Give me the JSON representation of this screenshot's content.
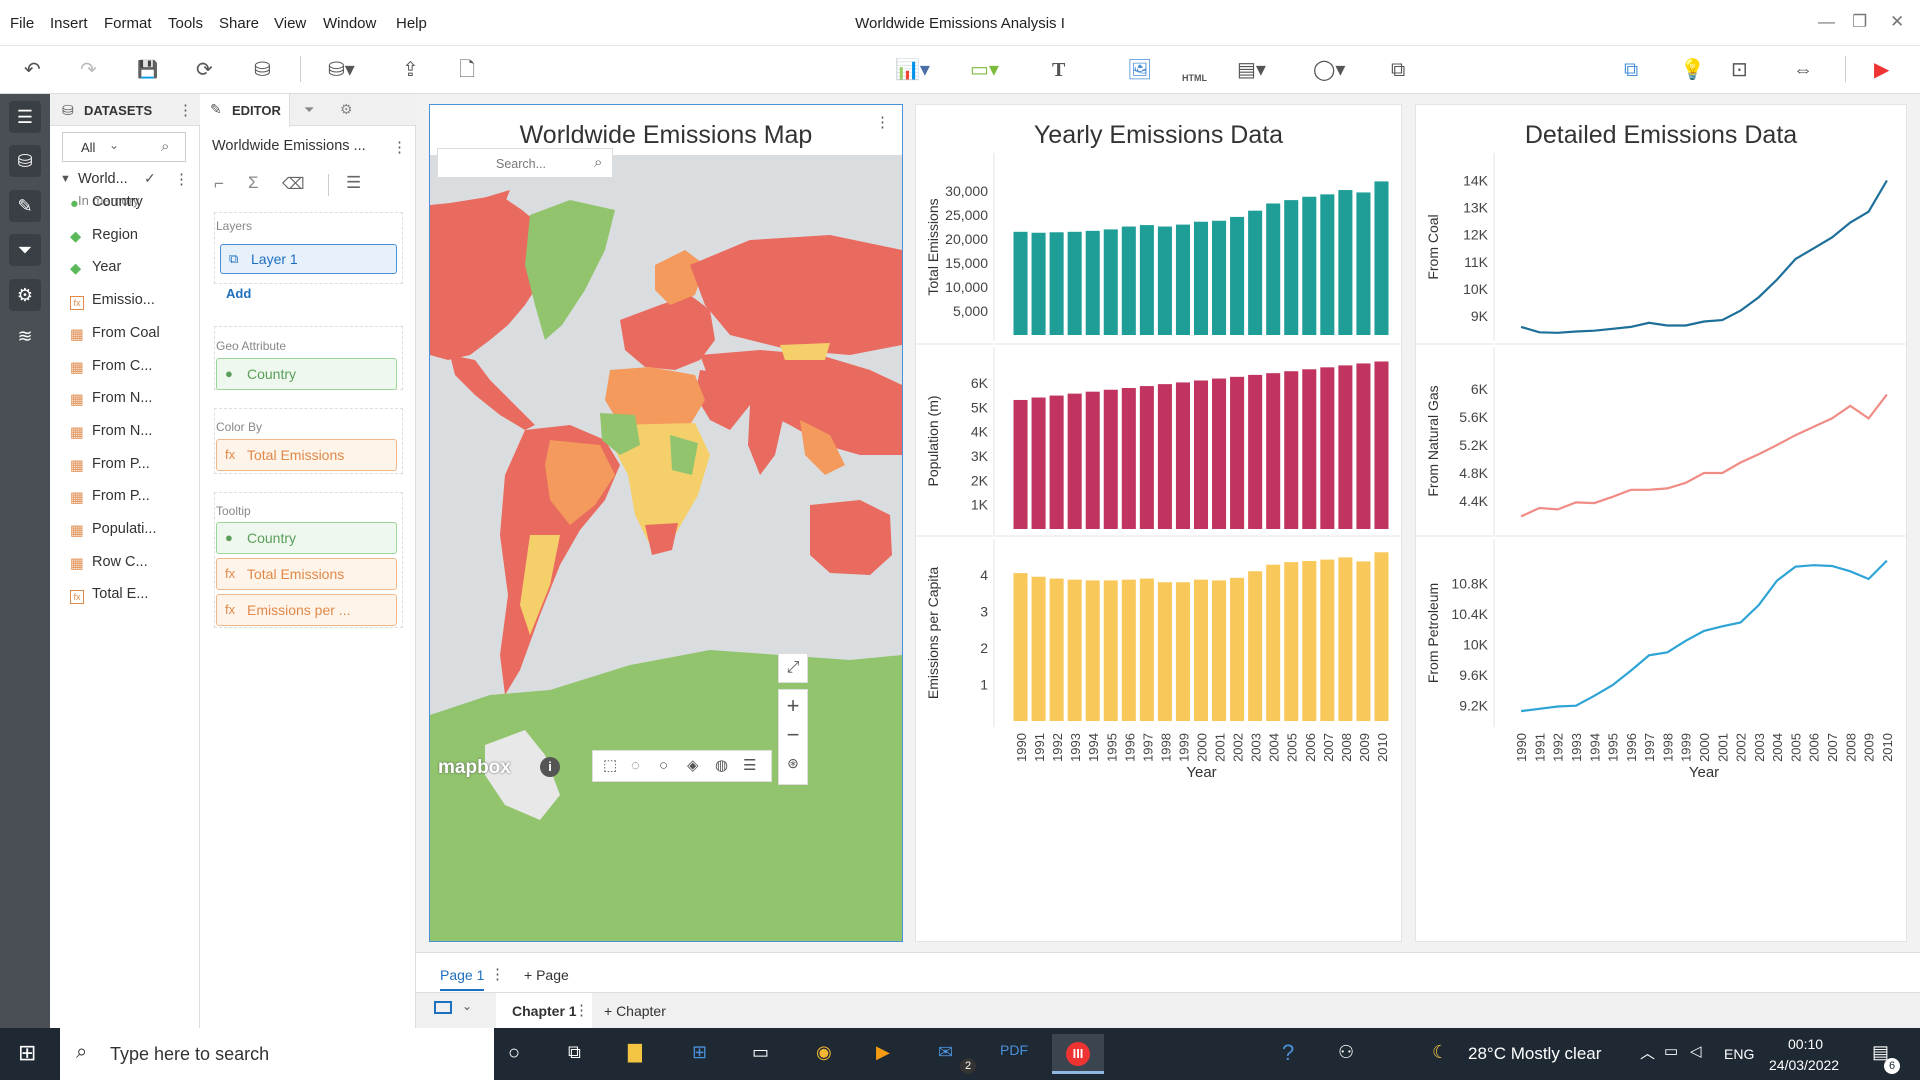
{
  "menu": {
    "items": [
      "File",
      "Insert",
      "Format",
      "Tools",
      "Share",
      "View",
      "Window",
      "Help"
    ],
    "window_title": "Worldwide Emissions Analysis I",
    "controls": [
      "—",
      "❐",
      "✕"
    ]
  },
  "toolbar": {
    "undo": "↶",
    "redo": "↷",
    "save": "💾",
    "refresh": "⟳",
    "datasource": "⛁",
    "adddata": "⛁▾",
    "export": "⇪",
    "newdoc": "🗋",
    "chartbtn": "📊▾",
    "colorbtn": "▭▾",
    "textbtn": "T",
    "imagebtn": "🖼",
    "htmlbtn": "HTML",
    "filterbtn": "▤▾",
    "shapesbtn": "◯▾",
    "newpanel": "⧉",
    "right": [
      "⧉",
      "💡",
      "⊡",
      "⇔",
      "▶"
    ]
  },
  "rail": [
    "☰",
    "⛁",
    "✎",
    "⏷",
    "⚙",
    "≋"
  ],
  "datasets": {
    "title": "DATASETS",
    "filter_value": "All",
    "dataset_name": "World...",
    "in_memory": "In memory",
    "fields": [
      {
        "label": "Country",
        "kind": "geo"
      },
      {
        "label": "Region",
        "kind": "attr"
      },
      {
        "label": "Year",
        "kind": "attr"
      },
      {
        "label": "Emissio...",
        "kind": "fx"
      },
      {
        "label": "From Coal",
        "kind": "metric"
      },
      {
        "label": "From C...",
        "kind": "metric"
      },
      {
        "label": "From N...",
        "kind": "metric"
      },
      {
        "label": "From N...",
        "kind": "metric"
      },
      {
        "label": "From P...",
        "kind": "metric"
      },
      {
        "label": "From P...",
        "kind": "metric"
      },
      {
        "label": "Populati...",
        "kind": "metric"
      },
      {
        "label": "Row C...",
        "kind": "metric"
      },
      {
        "label": "Total E...",
        "kind": "fx"
      }
    ]
  },
  "editor": {
    "title": "EDITOR",
    "viz_name": "Worldwide Emissions ...",
    "layers_label": "Layers",
    "layer1": "Layer 1",
    "add": "Add",
    "geo_label": "Geo Attribute",
    "geo_value": "Country",
    "color_label": "Color By",
    "color_value": "Total Emissions",
    "tooltip_label": "Tooltip",
    "tooltip_values": [
      "Country",
      "Total Emissions",
      "Emissions per ..."
    ]
  },
  "map": {
    "title": "Worldwide Emissions Map",
    "search_placeholder": "Search...",
    "brand": "mapbox",
    "colors": {
      "high": "#e96a5e",
      "mid": "#f39a5c",
      "low": "#f5d06a",
      "green": "#91c46d",
      "water": "#dadde0"
    }
  },
  "chart_data": [
    {
      "type": "bar",
      "title": "Yearly Emissions Data",
      "xlabel": "Year",
      "categories": [
        "1990",
        "1991",
        "1992",
        "1993",
        "1994",
        "1995",
        "1996",
        "1997",
        "1998",
        "1999",
        "2000",
        "2001",
        "2002",
        "2003",
        "2004",
        "2005",
        "2006",
        "2007",
        "2008",
        "2009",
        "2010"
      ],
      "panels": [
        {
          "ylabel": "Total Emissions",
          "color": "#1e9e96",
          "ylim": [
            0,
            35000
          ],
          "ticks": [
            "5,000",
            "10,000",
            "15,000",
            "20,000",
            "25,000",
            "30,000"
          ],
          "tickvals": [
            5000,
            10000,
            15000,
            20000,
            25000,
            30000
          ],
          "values": [
            21500,
            21300,
            21400,
            21500,
            21700,
            22000,
            22600,
            22900,
            22600,
            23000,
            23600,
            23800,
            24600,
            25900,
            27400,
            28100,
            28800,
            29300,
            30200,
            29700,
            32000
          ]
        },
        {
          "ylabel": "Population (m)",
          "color": "#c0345f",
          "ylim": [
            0,
            6900
          ],
          "ticks": [
            "1K",
            "2K",
            "3K",
            "4K",
            "5K",
            "6K"
          ],
          "tickvals": [
            1000,
            2000,
            3000,
            4000,
            5000,
            6000
          ],
          "values": [
            5300,
            5400,
            5480,
            5560,
            5640,
            5720,
            5790,
            5870,
            5950,
            6020,
            6100,
            6180,
            6250,
            6330,
            6400,
            6480,
            6560,
            6640,
            6720,
            6800,
            6880
          ]
        },
        {
          "ylabel": "Emissions per Capita",
          "color": "#f9c85b",
          "ylim": [
            0,
            4.6
          ],
          "ticks": [
            "1",
            "2",
            "3",
            "4"
          ],
          "tickvals": [
            1,
            2,
            3,
            4
          ],
          "values": [
            4.05,
            3.95,
            3.9,
            3.87,
            3.85,
            3.85,
            3.87,
            3.9,
            3.8,
            3.8,
            3.87,
            3.85,
            3.92,
            4.1,
            4.28,
            4.35,
            4.38,
            4.42,
            4.48,
            4.37,
            4.62
          ]
        }
      ]
    },
    {
      "type": "line",
      "title": "Detailed Emissions Data",
      "xlabel": "Year",
      "categories": [
        "1990",
        "1991",
        "1992",
        "1993",
        "1994",
        "1995",
        "1996",
        "1997",
        "1998",
        "1999",
        "2000",
        "2001",
        "2002",
        "2003",
        "2004",
        "2005",
        "2006",
        "2007",
        "2008",
        "2009",
        "2010"
      ],
      "panels": [
        {
          "ylabel": "From Coal",
          "color": "#1d6f9a",
          "ylim": [
            8300,
            14500
          ],
          "ticks": [
            "9K",
            "10K",
            "11K",
            "12K",
            "13K",
            "14K"
          ],
          "tickvals": [
            9000,
            10000,
            11000,
            12000,
            13000,
            14000
          ],
          "values": [
            8600,
            8400,
            8380,
            8430,
            8460,
            8530,
            8600,
            8750,
            8650,
            8650,
            8800,
            8850,
            9200,
            9700,
            10350,
            11100,
            11500,
            11900,
            12450,
            12850,
            14000
          ]
        },
        {
          "ylabel": "From Natural Gas",
          "color": "#f08c85",
          "ylim": [
            4000,
            6400
          ],
          "ticks": [
            "4.4K",
            "4.8K",
            "5.2K",
            "5.6K",
            "6K"
          ],
          "tickvals": [
            4400,
            4800,
            5200,
            5600,
            6000
          ],
          "values": [
            4180,
            4300,
            4280,
            4380,
            4370,
            4460,
            4560,
            4560,
            4580,
            4660,
            4800,
            4800,
            4950,
            5070,
            5200,
            5340,
            5460,
            5580,
            5760,
            5580,
            5920
          ]
        },
        {
          "ylabel": "From Petroleum",
          "color": "#2ea3d6",
          "ylim": [
            9000,
            11200
          ],
          "ticks": [
            "9.2K",
            "9.6K",
            "10K",
            "10.4K",
            "10.8K"
          ],
          "tickvals": [
            9200,
            9600,
            10000,
            10400,
            10800
          ],
          "values": [
            9130,
            9160,
            9190,
            9200,
            9330,
            9470,
            9660,
            9860,
            9900,
            10050,
            10180,
            10240,
            10290,
            10520,
            10840,
            11020,
            11040,
            11030,
            10960,
            10860,
            11100
          ]
        }
      ]
    }
  ],
  "tabs": {
    "page": "Page 1",
    "add_page": "+ Page",
    "chapter": "Chapter 1",
    "add_chapter": "+ Chapter"
  },
  "taskbar": {
    "search": "Type here to search",
    "weather": "28°C  Mostly clear",
    "lang": "ENG",
    "time": "00:10",
    "date": "24/03/2022",
    "mail_badge": "2",
    "notif": "6"
  }
}
